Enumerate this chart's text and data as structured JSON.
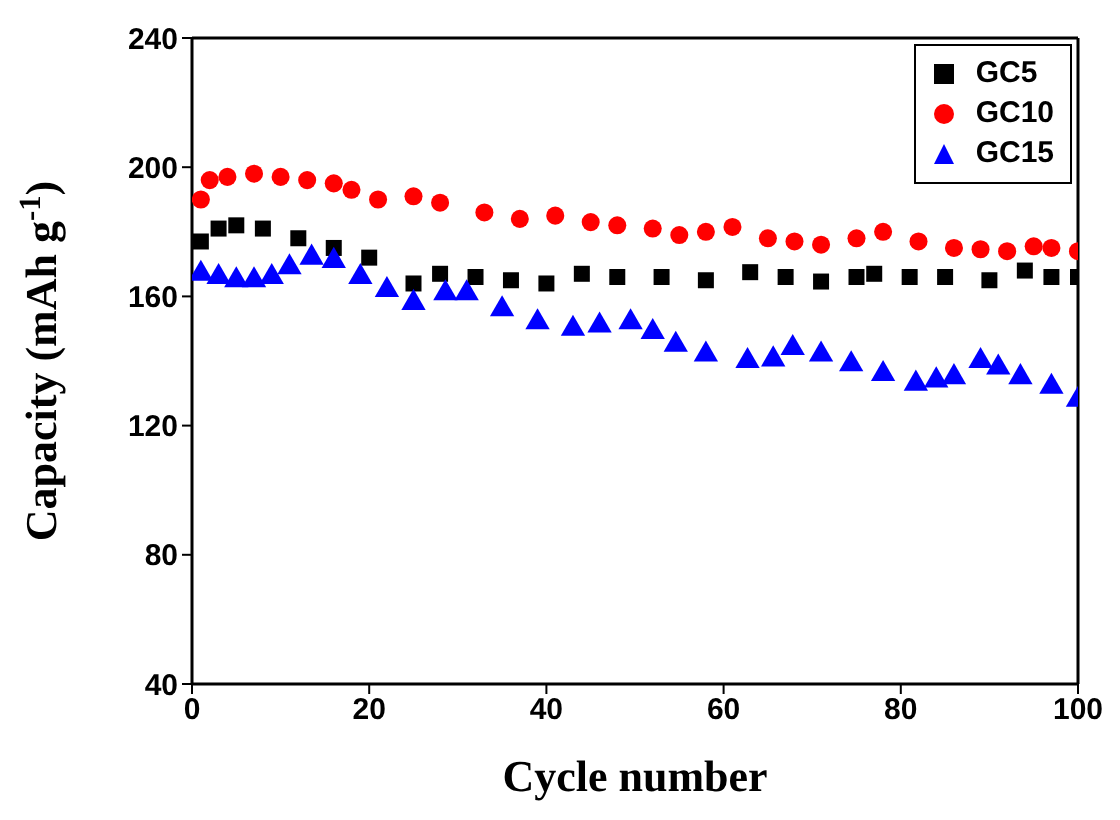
{
  "chart_data": {
    "type": "scatter",
    "xlabel": "Cycle number",
    "ylabel": "Capacity (mAh g$^{-1}$)",
    "xlim": [
      0,
      100
    ],
    "xticks": [
      0,
      20,
      40,
      60,
      80,
      100
    ],
    "ylim": [
      40,
      240
    ],
    "yticks": [
      40,
      80,
      120,
      160,
      200,
      240
    ],
    "legend": "top right",
    "series": [
      {
        "name": "GC5",
        "color": "#000000",
        "marker": "square",
        "x": [
          1,
          3,
          5,
          8,
          12,
          16,
          20,
          25,
          28,
          32,
          36,
          40,
          44,
          48,
          53,
          58,
          63,
          67,
          71,
          75,
          77,
          81,
          85,
          90,
          94,
          97,
          100
        ],
        "values": [
          177,
          181,
          182,
          181,
          178,
          175,
          172,
          164,
          167,
          166,
          165,
          164,
          167,
          166,
          166,
          165,
          167.5,
          166,
          164.6,
          166,
          167,
          166,
          166,
          165,
          168,
          166,
          166
        ]
      },
      {
        "name": "GC10",
        "color": "#ff0000",
        "marker": "circle",
        "x": [
          1,
          2,
          4,
          7,
          10,
          13,
          16,
          18,
          21,
          25,
          28,
          33,
          37,
          41,
          45,
          48,
          52,
          55,
          58,
          61,
          65,
          68,
          71,
          75,
          78,
          82,
          86,
          89,
          92,
          95,
          97,
          100
        ],
        "values": [
          190,
          196,
          197,
          198,
          197,
          196,
          195,
          193,
          190,
          191,
          189,
          186,
          184,
          185,
          183,
          182,
          181,
          179,
          180,
          181.5,
          178,
          177,
          176,
          178,
          180,
          177,
          175,
          174.6,
          174,
          175.5,
          175,
          174
        ]
      },
      {
        "name": "GC15",
        "color": "#0000ff",
        "marker": "triangle",
        "x": [
          1,
          3,
          5,
          7,
          9,
          11,
          13.5,
          16,
          19,
          22,
          25,
          28.6,
          31,
          35,
          39,
          43,
          46,
          49.5,
          52,
          54.6,
          58,
          62.7,
          65.6,
          67.8,
          71,
          74.4,
          78,
          81.7,
          84,
          86,
          89,
          91,
          93.5,
          97,
          100
        ],
        "values": [
          167,
          166,
          165,
          165,
          166,
          169,
          172,
          171,
          166,
          162,
          158,
          161,
          161,
          156,
          152,
          150,
          151,
          152,
          149,
          145,
          142,
          140,
          140.5,
          144,
          142,
          139,
          136,
          133,
          134,
          135,
          140,
          138,
          135,
          132,
          128
        ]
      }
    ]
  }
}
